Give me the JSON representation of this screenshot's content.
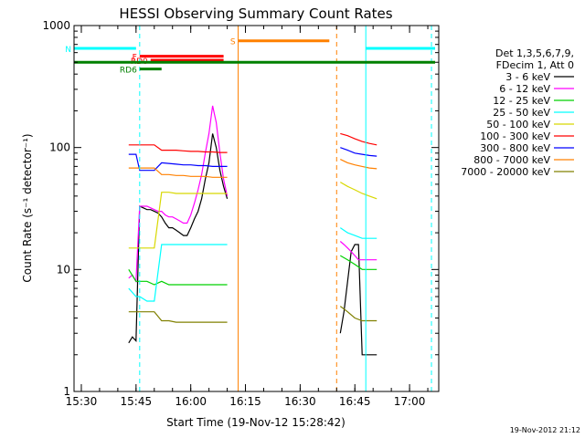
{
  "timestamp": "19-Nov-2012 21:12",
  "chart_data": {
    "type": "line",
    "title": "HESSI Observing Summary Count Rates",
    "xlabel": "Start Time (19-Nov-12 15:28:42)",
    "ylabel": "Count Rate (s⁻¹ detector⁻¹)",
    "yscale": "log",
    "ylim": [
      1,
      1000
    ],
    "xlim": [
      "15:28",
      "17:08"
    ],
    "x_ticks": [
      "15:30",
      "15:45",
      "16:00",
      "16:15",
      "16:30",
      "16:45",
      "17:00"
    ],
    "y_ticks": [
      "1",
      "10",
      "100",
      "1000"
    ],
    "grid": false,
    "legend_position": "right",
    "legend_header": [
      "Det 1,3,5,6,7,9,",
      "FDecim 1, Att 0"
    ],
    "series": [
      {
        "name": "3 - 6 keV",
        "color": "#000000",
        "x": [
          "15:43",
          "15:44",
          "15:45",
          "15:46",
          "15:47",
          "15:48",
          "15:49",
          "15:50",
          "15:51",
          "15:52",
          "15:53",
          "15:54",
          "15:55",
          "15:56",
          "15:57",
          "15:58",
          "15:59",
          "16:00",
          "16:01",
          "16:02",
          "16:03",
          "16:04",
          "16:05",
          "16:06",
          "16:07",
          "16:08",
          "16:09",
          "16:10"
        ],
        "y": [
          2.5,
          2.8,
          2.6,
          33,
          32,
          31,
          31,
          30,
          29,
          27,
          24,
          22,
          22,
          21,
          20,
          19,
          19,
          22,
          26,
          30,
          38,
          55,
          75,
          130,
          100,
          65,
          48,
          38
        ],
        "x2": [
          "16:41",
          "16:42",
          "16:43",
          "16:44",
          "16:45",
          "16:46",
          "16:47",
          "16:48",
          "16:49",
          "16:50",
          "16:51"
        ],
        "y2": [
          3,
          4.5,
          8,
          14,
          16,
          16,
          2,
          2,
          2,
          2,
          2
        ]
      },
      {
        "name": "6 - 12 keV",
        "color": "#ff00ff",
        "x": [
          "15:43",
          "15:44",
          "15:45",
          "15:46",
          "15:47",
          "15:48",
          "15:49",
          "15:50",
          "15:51",
          "15:52",
          "15:53",
          "15:54",
          "15:55",
          "15:56",
          "15:57",
          "15:58",
          "15:59",
          "16:00",
          "16:01",
          "16:02",
          "16:03",
          "16:04",
          "16:05",
          "16:06",
          "16:07",
          "16:08",
          "16:09",
          "16:10"
        ],
        "y": [
          8.5,
          9,
          8,
          33,
          33,
          33,
          32,
          31,
          30,
          30,
          28,
          27,
          27,
          26,
          25,
          24,
          24,
          28,
          35,
          45,
          60,
          90,
          130,
          220,
          160,
          90,
          55,
          40
        ],
        "x2": [
          "16:41",
          "16:42",
          "16:43",
          "16:44",
          "16:45",
          "16:46",
          "16:47",
          "16:48",
          "16:49",
          "16:50",
          "16:51"
        ],
        "y2": [
          17,
          16,
          15,
          14,
          13,
          12,
          12,
          12,
          12,
          12,
          12
        ]
      },
      {
        "name": "12 - 25 keV",
        "color": "#00d000",
        "x": [
          "15:43",
          "15:45",
          "15:46",
          "15:48",
          "15:50",
          "15:52",
          "15:54",
          "15:56",
          "15:58",
          "16:00",
          "16:02",
          "16:04",
          "16:06",
          "16:08",
          "16:10"
        ],
        "y": [
          10,
          8,
          8,
          8,
          7.5,
          8,
          7.5,
          7.5,
          7.5,
          7.5,
          7.5,
          7.5,
          7.5,
          7.5,
          7.5
        ],
        "x2": [
          "16:41",
          "16:43",
          "16:45",
          "16:47",
          "16:49",
          "16:51"
        ],
        "y2": [
          13,
          12,
          11,
          10,
          10,
          10
        ]
      },
      {
        "name": "25 - 50 keV",
        "color": "#00ffff",
        "x": [
          "15:43",
          "15:45",
          "15:46",
          "15:48",
          "15:50",
          "15:52",
          "15:54",
          "15:56",
          "15:58",
          "16:00",
          "16:02",
          "16:04",
          "16:06",
          "16:08",
          "16:10"
        ],
        "y": [
          7,
          6,
          6,
          5.5,
          5.5,
          16,
          16,
          16,
          16,
          16,
          16,
          16,
          16,
          16,
          16
        ],
        "x2": [
          "16:41",
          "16:43",
          "16:45",
          "16:47",
          "16:49",
          "16:51"
        ],
        "y2": [
          22,
          20,
          19,
          18,
          18,
          18
        ]
      },
      {
        "name": "50 - 100 keV",
        "color": "#d8d800",
        "x": [
          "15:43",
          "15:45",
          "15:46",
          "15:48",
          "15:50",
          "15:52",
          "15:54",
          "15:56",
          "15:58",
          "16:00",
          "16:02",
          "16:04",
          "16:06",
          "16:08",
          "16:10"
        ],
        "y": [
          15,
          15,
          15,
          15,
          15,
          43,
          43,
          42,
          42,
          42,
          42,
          42,
          42,
          42,
          42
        ],
        "x2": [
          "16:41",
          "16:43",
          "16:45",
          "16:47",
          "16:49",
          "16:51"
        ],
        "y2": [
          52,
          48,
          45,
          42,
          40,
          38
        ]
      },
      {
        "name": "100 - 300 keV",
        "color": "#ff0000",
        "x": [
          "15:43",
          "15:45",
          "15:46",
          "15:48",
          "15:50",
          "15:52",
          "15:54",
          "15:56",
          "15:58",
          "16:00",
          "16:02",
          "16:04",
          "16:06",
          "16:08",
          "16:10"
        ],
        "y": [
          105,
          105,
          105,
          105,
          105,
          95,
          95,
          95,
          94,
          93,
          93,
          92,
          92,
          91,
          91
        ],
        "x2": [
          "16:41",
          "16:43",
          "16:45",
          "16:47",
          "16:49",
          "16:51"
        ],
        "y2": [
          130,
          125,
          118,
          112,
          108,
          105
        ]
      },
      {
        "name": "300 - 800 keV",
        "color": "#0000ff",
        "x": [
          "15:43",
          "15:45",
          "15:46",
          "15:48",
          "15:50",
          "15:52",
          "15:54",
          "15:56",
          "15:58",
          "16:00",
          "16:02",
          "16:04",
          "16:06",
          "16:08",
          "16:10"
        ],
        "y": [
          88,
          88,
          65,
          65,
          65,
          75,
          74,
          73,
          72,
          72,
          71,
          71,
          70,
          70,
          70
        ],
        "x2": [
          "16:41",
          "16:43",
          "16:45",
          "16:47",
          "16:49",
          "16:51"
        ],
        "y2": [
          100,
          95,
          90,
          88,
          86,
          85
        ]
      },
      {
        "name": "800 - 7000 keV",
        "color": "#ff8000",
        "x": [
          "15:43",
          "15:45",
          "15:46",
          "15:48",
          "15:50",
          "15:52",
          "15:54",
          "15:56",
          "15:58",
          "16:00",
          "16:02",
          "16:04",
          "16:06",
          "16:08",
          "16:10"
        ],
        "y": [
          68,
          68,
          68,
          68,
          68,
          60,
          60,
          59,
          59,
          58,
          58,
          58,
          57,
          57,
          57
        ],
        "x2": [
          "16:41",
          "16:43",
          "16:45",
          "16:47",
          "16:49",
          "16:51"
        ],
        "y2": [
          80,
          75,
          72,
          70,
          68,
          67
        ]
      },
      {
        "name": "7000 - 20000 keV",
        "color": "#808000",
        "x": [
          "15:43",
          "15:45",
          "15:46",
          "15:48",
          "15:50",
          "15:52",
          "15:54",
          "15:56",
          "15:58",
          "16:00",
          "16:02",
          "16:04",
          "16:06",
          "16:08",
          "16:10"
        ],
        "y": [
          4.5,
          4.5,
          4.5,
          4.5,
          4.5,
          3.8,
          3.8,
          3.7,
          3.7,
          3.7,
          3.7,
          3.7,
          3.7,
          3.7,
          3.7
        ],
        "x2": [
          "16:41",
          "16:43",
          "16:45",
          "16:47",
          "16:49",
          "16:51"
        ],
        "y2": [
          5,
          4.5,
          4,
          3.8,
          3.8,
          3.8
        ]
      }
    ],
    "flags": [
      {
        "label": "N",
        "color": "#00ffff",
        "ranges": [
          [
            "15:28",
            "15:45"
          ],
          [
            "16:48",
            "17:07"
          ]
        ],
        "y": 650
      },
      {
        "label": "F",
        "color": "#ff0000",
        "ranges": [
          [
            "15:46",
            "16:09"
          ]
        ],
        "y": 560
      },
      {
        "label": "RD0",
        "color": "#ff0000",
        "ranges": [
          [
            "15:49",
            "16:09"
          ]
        ],
        "y": 520
      },
      {
        "label": "S",
        "color": "#ff8000",
        "ranges": [
          [
            "16:13",
            "16:38"
          ]
        ],
        "y": 750
      },
      {
        "label": "",
        "color": "#008000",
        "ranges": [
          [
            "15:28",
            "17:07"
          ]
        ],
        "y": 500
      },
      {
        "label": "RD6",
        "color": "#008000",
        "ranges": [
          [
            "15:46",
            "15:52"
          ]
        ],
        "y": 440
      }
    ],
    "vertical_markers": [
      {
        "x": "15:46",
        "color": "#00ffff",
        "style": "dashed"
      },
      {
        "x": "16:13",
        "color": "#ff8000",
        "style": "solid"
      },
      {
        "x": "16:40",
        "color": "#ff8000",
        "style": "dashed"
      },
      {
        "x": "16:48",
        "color": "#00ffff",
        "style": "solid"
      },
      {
        "x": "17:06",
        "color": "#00ffff",
        "style": "dashed"
      }
    ]
  }
}
